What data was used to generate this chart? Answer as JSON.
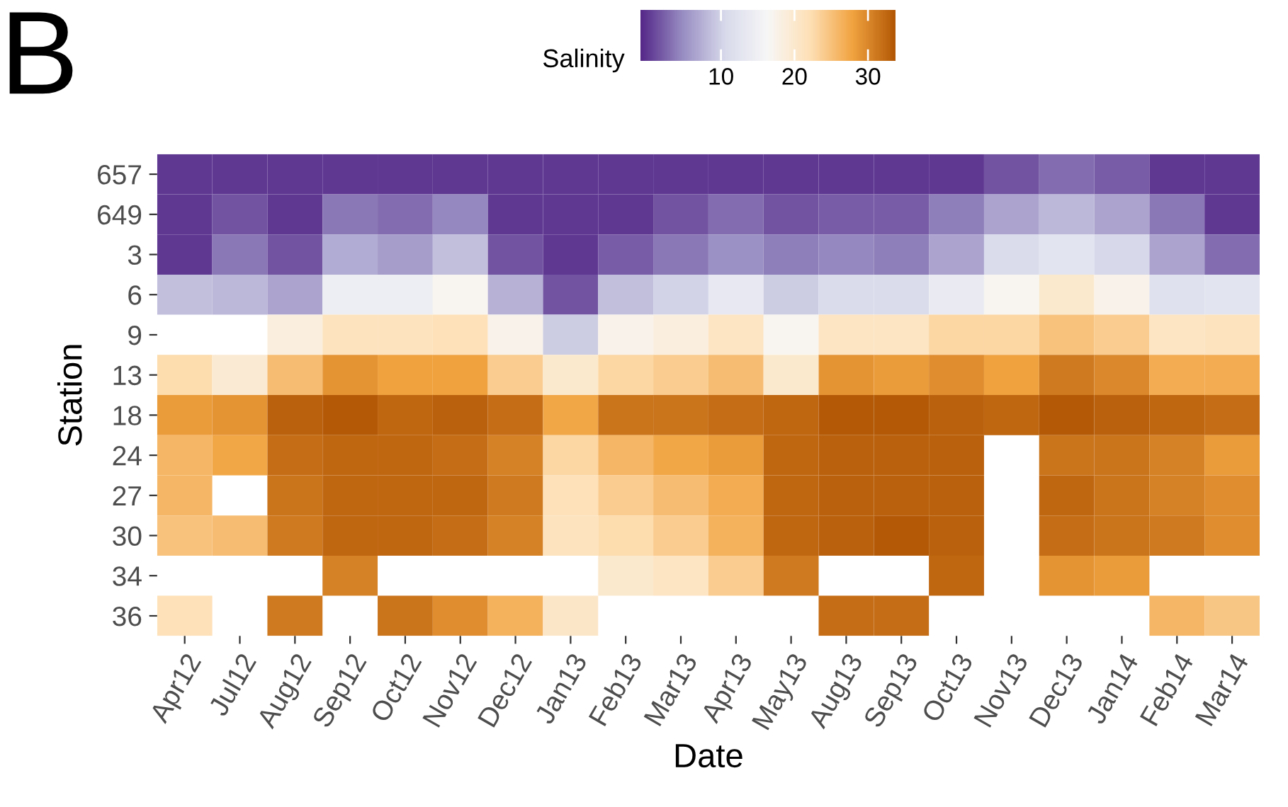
{
  "chart_data": {
    "type": "heatmap",
    "title": "B",
    "xlabel": "Date",
    "ylabel": "Station",
    "clabel": "Salinity",
    "categories": [
      "Apr12",
      "Jul12",
      "Aug12",
      "Sep12",
      "Oct12",
      "Nov12",
      "Dec12",
      "Jan13",
      "Feb13",
      "Mar13",
      "Apr13",
      "May13",
      "Aug13",
      "Sep13",
      "Oct13",
      "Nov13",
      "Dec13",
      "Jan14",
      "Feb14",
      "Mar14"
    ],
    "y_categories": [
      "657",
      "649",
      "3",
      "6",
      "9",
      "13",
      "18",
      "24",
      "27",
      "30",
      "34",
      "36"
    ],
    "cells": [
      [
        0,
        0,
        0,
        0,
        0,
        0,
        0,
        0,
        0,
        0,
        0,
        0,
        0,
        0,
        0,
        1.5,
        3,
        2,
        0,
        0
      ],
      [
        0,
        1.5,
        0,
        3.5,
        3,
        4.5,
        0,
        0,
        0,
        1.5,
        3,
        1.5,
        2,
        2,
        4,
        6.5,
        8,
        6.5,
        3.5,
        0
      ],
      [
        0,
        3.5,
        1.5,
        7,
        6,
        8.5,
        1.5,
        0,
        2,
        3.5,
        5,
        4,
        4.5,
        4,
        6.5,
        11,
        12.5,
        10.5,
        6.5,
        3
      ],
      [
        8.5,
        8,
        6.5,
        14.5,
        14.5,
        17,
        7.5,
        1.5,
        8.5,
        10,
        13.5,
        9.5,
        11,
        11,
        14,
        17,
        20,
        17.5,
        12,
        12.5
      ],
      [
        null,
        null,
        18.5,
        21.5,
        21.5,
        22,
        17.5,
        9.5,
        17.5,
        18.5,
        21,
        17,
        21,
        21,
        23,
        23,
        25,
        24,
        21,
        21.5
      ],
      [
        22.5,
        19.5,
        25.5,
        29,
        28,
        28,
        24,
        20,
        23,
        24,
        25.5,
        20,
        29,
        28.5,
        29.5,
        28,
        31,
        30,
        27,
        27
      ],
      [
        28.5,
        29,
        33,
        33.5,
        32.5,
        33,
        32,
        27.5,
        31.5,
        31.5,
        32,
        32.5,
        33.5,
        33.5,
        33,
        32.5,
        33.5,
        33,
        32.5,
        32
      ],
      [
        26,
        27.5,
        32,
        32.5,
        32.5,
        32,
        30.5,
        23,
        26,
        27.5,
        28.5,
        32.5,
        33,
        33,
        33,
        null,
        31.5,
        31.5,
        30.5,
        28.5
      ],
      [
        26,
        null,
        31.5,
        32.5,
        32.5,
        32.5,
        31,
        22,
        24,
        25.5,
        27,
        32.5,
        33,
        33,
        33,
        null,
        32.5,
        31.5,
        30.5,
        29.5
      ],
      [
        25,
        25.5,
        31,
        32.5,
        32.5,
        32,
        30.5,
        21.5,
        22.5,
        24,
        26.5,
        32.5,
        33,
        33.5,
        33,
        null,
        32,
        31.5,
        31,
        29.5
      ],
      [
        null,
        null,
        null,
        30.5,
        null,
        null,
        null,
        null,
        20,
        21,
        24,
        31,
        null,
        null,
        32.5,
        null,
        29,
        28.5,
        null,
        null
      ],
      [
        22,
        null,
        31,
        null,
        31.5,
        29.5,
        26.5,
        20.5,
        null,
        null,
        null,
        null,
        32,
        32,
        null,
        null,
        null,
        null,
        26,
        24.5
      ]
    ],
    "clim": [
      -1,
      33.7
    ],
    "cticks": [
      10,
      20,
      30
    ],
    "colors": [
      "#542788",
      "#998ec3",
      "#d8daeb",
      "#f7f7f7",
      "#fee0b6",
      "#f1a340",
      "#b35806"
    ],
    "grid": false
  }
}
